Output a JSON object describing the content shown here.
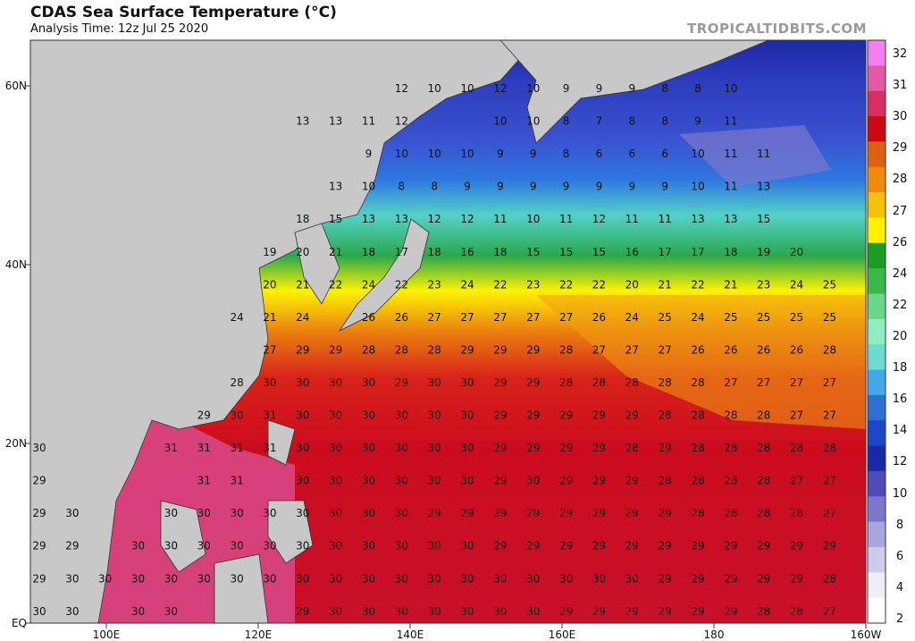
{
  "header": {
    "title": "CDAS Sea Surface Temperature (°C)",
    "subtitle": "Analysis Time: 12z Jul 25 2020",
    "brand": "TROPICALTIDBITS.COM"
  },
  "axes": {
    "lat_labels": [
      "60N",
      "40N",
      "20N",
      "EQ"
    ],
    "lon_labels": [
      "100E",
      "120E",
      "140E",
      "160E",
      "180",
      "160W"
    ]
  },
  "colorbar": {
    "labels": [
      "32",
      "31",
      "30",
      "29",
      "28",
      "27",
      "26",
      "24",
      "22",
      "20",
      "18",
      "16",
      "14",
      "12",
      "10",
      "8",
      "6",
      "4",
      "2"
    ],
    "colors": [
      "#f27ef0",
      "#e25aa6",
      "#d82e62",
      "#cc0810",
      "#e06012",
      "#f08a0e",
      "#f4c20a",
      "#fff200",
      "#1a9e22",
      "#3ab84a",
      "#6ad68a",
      "#8eeec0",
      "#6cdcd0",
      "#44a8e8",
      "#2e6fd6",
      "#1a46c8",
      "#1a2aa6",
      "#4e4ab8",
      "#7c78cc",
      "#a8a6dc",
      "#ceccec",
      "#eeeef8",
      "#ffffff"
    ]
  },
  "map": {
    "land_color": "#c8c8c8",
    "grid_rows": [
      [
        "",
        "",
        "",
        "",
        "",
        "",
        "",
        "",
        "",
        "",
        "",
        "12",
        "10",
        "10",
        "12",
        "10",
        "9",
        "9",
        "9",
        "8",
        "8",
        "10"
      ],
      [
        "",
        "",
        "",
        "",
        "",
        "",
        "",
        "",
        "13",
        "13",
        "11",
        "12",
        "",
        "",
        "10",
        "10",
        "8",
        "7",
        "8",
        "8",
        "9",
        "11"
      ],
      [
        "",
        "",
        "",
        "",
        "",
        "",
        "",
        "",
        "",
        "",
        "9",
        "10",
        "10",
        "10",
        "9",
        "9",
        "8",
        "6",
        "6",
        "6",
        "10",
        "11",
        "11"
      ],
      [
        "",
        "",
        "",
        "",
        "",
        "",
        "",
        "",
        "",
        "13",
        "10",
        "8",
        "8",
        "9",
        "9",
        "9",
        "9",
        "9",
        "9",
        "9",
        "10",
        "11",
        "13"
      ],
      [
        "",
        "",
        "",
        "",
        "",
        "",
        "",
        "",
        "18",
        "15",
        "13",
        "13",
        "12",
        "12",
        "11",
        "10",
        "11",
        "12",
        "11",
        "11",
        "13",
        "13",
        "15"
      ],
      [
        "",
        "",
        "",
        "",
        "",
        "",
        "",
        "19",
        "20",
        "21",
        "18",
        "17",
        "18",
        "16",
        "18",
        "15",
        "15",
        "15",
        "16",
        "17",
        "17",
        "18",
        "19",
        "20"
      ],
      [
        "",
        "",
        "",
        "",
        "",
        "",
        "",
        "20",
        "21",
        "22",
        "24",
        "22",
        "23",
        "24",
        "22",
        "23",
        "22",
        "22",
        "20",
        "21",
        "22",
        "21",
        "23",
        "24",
        "25"
      ],
      [
        "",
        "",
        "",
        "",
        "",
        "",
        "24",
        "21",
        "24",
        "",
        "26",
        "26",
        "27",
        "27",
        "27",
        "27",
        "27",
        "26",
        "24",
        "25",
        "24",
        "25",
        "25",
        "25",
        "25"
      ],
      [
        "",
        "",
        "",
        "",
        "",
        "",
        "",
        "27",
        "29",
        "29",
        "28",
        "28",
        "28",
        "29",
        "29",
        "29",
        "28",
        "27",
        "27",
        "27",
        "26",
        "26",
        "26",
        "26",
        "28"
      ],
      [
        "",
        "",
        "",
        "",
        "",
        "",
        "28",
        "30",
        "30",
        "30",
        "30",
        "29",
        "30",
        "30",
        "29",
        "29",
        "28",
        "28",
        "28",
        "28",
        "28",
        "27",
        "27",
        "27",
        "27"
      ],
      [
        "",
        "",
        "",
        "",
        "",
        "29",
        "30",
        "31",
        "30",
        "30",
        "30",
        "30",
        "30",
        "30",
        "29",
        "29",
        "29",
        "29",
        "29",
        "28",
        "28",
        "28",
        "28",
        "27",
        "27"
      ],
      [
        "30",
        "",
        "",
        "",
        "31",
        "31",
        "31",
        "31",
        "30",
        "30",
        "30",
        "30",
        "30",
        "30",
        "29",
        "29",
        "29",
        "29",
        "28",
        "29",
        "28",
        "28",
        "28",
        "28",
        "28"
      ],
      [
        "29",
        "",
        "",
        "",
        "",
        "31",
        "31",
        "",
        "30",
        "30",
        "30",
        "30",
        "30",
        "30",
        "29",
        "30",
        "29",
        "29",
        "29",
        "28",
        "28",
        "28",
        "28",
        "27",
        "27"
      ],
      [
        "29",
        "30",
        "",
        "",
        "30",
        "30",
        "30",
        "30",
        "30",
        "30",
        "30",
        "30",
        "29",
        "29",
        "29",
        "29",
        "29",
        "29",
        "29",
        "29",
        "28",
        "28",
        "28",
        "28",
        "27"
      ],
      [
        "29",
        "29",
        "",
        "30",
        "30",
        "30",
        "30",
        "30",
        "30",
        "30",
        "30",
        "30",
        "30",
        "30",
        "29",
        "29",
        "29",
        "29",
        "29",
        "29",
        "29",
        "29",
        "29",
        "29",
        "29"
      ],
      [
        "29",
        "30",
        "30",
        "30",
        "30",
        "30",
        "30",
        "30",
        "30",
        "30",
        "30",
        "30",
        "30",
        "30",
        "30",
        "30",
        "30",
        "30",
        "30",
        "29",
        "29",
        "29",
        "29",
        "29",
        "28"
      ],
      [
        "30",
        "30",
        "",
        "30",
        "30",
        "",
        "",
        "",
        "29",
        "30",
        "30",
        "30",
        "30",
        "30",
        "30",
        "30",
        "29",
        "29",
        "29",
        "29",
        "29",
        "29",
        "28",
        "28",
        "27"
      ]
    ]
  }
}
